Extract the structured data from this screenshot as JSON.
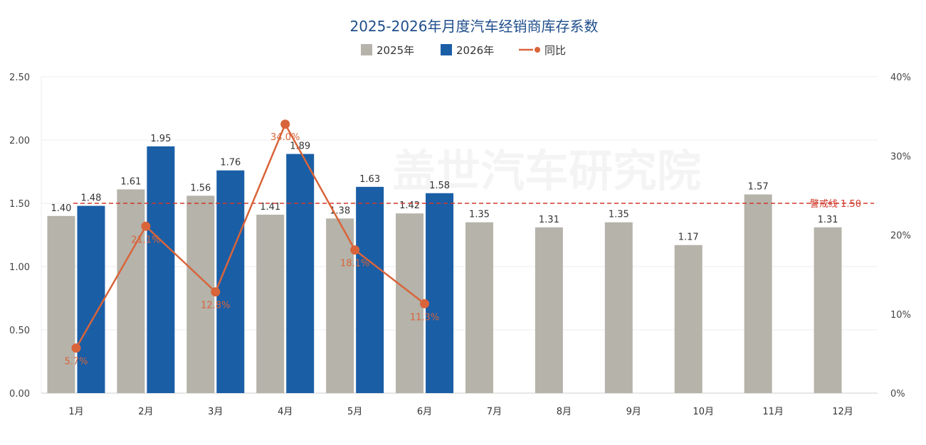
{
  "chart_data": {
    "type": "bar",
    "title": "2025-2026年月度汽车经销商库存系数",
    "categories": [
      "1月",
      "2月",
      "3月",
      "4月",
      "5月",
      "6月",
      "7月",
      "8月",
      "9月",
      "10月",
      "11月",
      "12月"
    ],
    "series": [
      {
        "name": "2025年",
        "kind": "bar",
        "color": "#b5b3aa",
        "values": [
          1.4,
          1.61,
          1.56,
          1.41,
          1.38,
          1.42,
          1.35,
          1.31,
          1.35,
          1.17,
          1.57,
          1.31
        ],
        "labels": [
          "1.40",
          "1.61",
          "1.56",
          "1.41",
          "1.38",
          "1.42",
          "1.35",
          "1.31",
          "1.35",
          "1.17",
          "1.57",
          "1.31"
        ]
      },
      {
        "name": "2026年",
        "kind": "bar",
        "color": "#1a5ea6",
        "values": [
          1.48,
          1.95,
          1.76,
          1.89,
          1.63,
          1.58,
          null,
          null,
          null,
          null,
          null,
          null
        ],
        "labels": [
          "1.48",
          "1.95",
          "1.76",
          "1.89",
          "1.63",
          "1.58",
          "",
          "",
          "",
          "",
          "",
          ""
        ]
      },
      {
        "name": "同比",
        "kind": "line",
        "axis": "right",
        "color": "#d9643a",
        "values": [
          5.7,
          21.1,
          12.8,
          34.0,
          18.1,
          11.3,
          null,
          null,
          null,
          null,
          null,
          null
        ],
        "labels": [
          "5.7%",
          "21.1%",
          "12.8%",
          "34.0%",
          "18.1%",
          "11.3%",
          "",
          "",
          "",
          "",
          "",
          ""
        ]
      }
    ],
    "ylim_left": [
      0,
      2.5
    ],
    "yticks_left": [
      "0.00",
      "0.50",
      "1.00",
      "1.50",
      "2.00",
      "2.50"
    ],
    "ylim_right": [
      0,
      40
    ],
    "yticks_right": [
      "0%",
      "10%",
      "20%",
      "30%",
      "40%"
    ],
    "reference_line": {
      "value": 1.5,
      "label": "警戒线 1.50",
      "color": "#d0392b"
    },
    "legend_position": "top-center",
    "grid": true,
    "watermark": "盖世汽车研究院"
  }
}
